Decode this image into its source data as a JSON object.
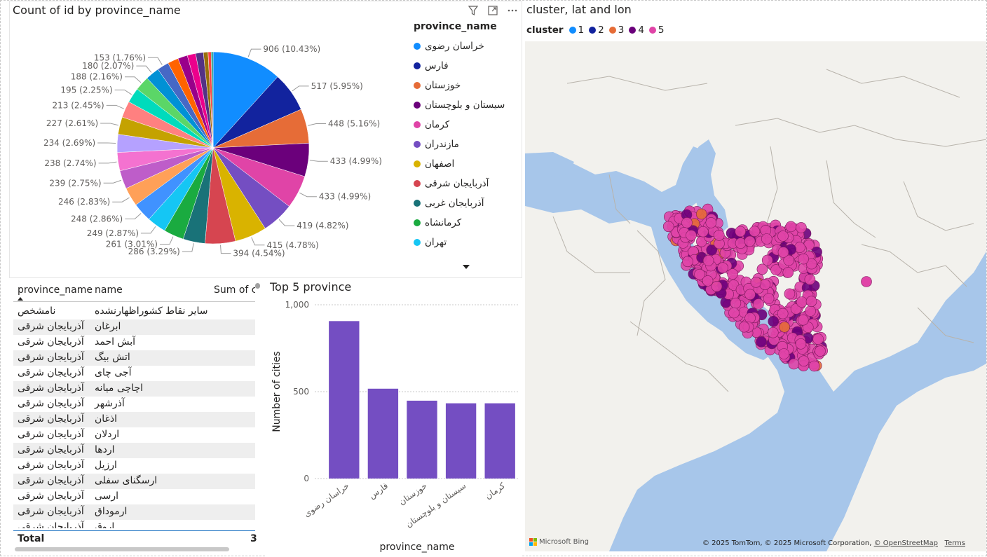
{
  "pie_visual": {
    "title": "Count of id by province_name",
    "legend_title": "province_name",
    "legend": [
      {
        "label": "خراسان رضوی",
        "color": "#118DFF"
      },
      {
        "label": "فارس",
        "color": "#12239E"
      },
      {
        "label": "خوزستان",
        "color": "#E66C37"
      },
      {
        "label": "سیستان و بلوچستان",
        "color": "#6B007B"
      },
      {
        "label": "کرمان",
        "color": "#E044A7"
      },
      {
        "label": "مازندران",
        "color": "#744EC2"
      },
      {
        "label": "اصفهان",
        "color": "#D9B300"
      },
      {
        "label": "آذربایجان شرقی",
        "color": "#D64550"
      },
      {
        "label": "آذربایجان غربی",
        "color": "#197278"
      },
      {
        "label": "کرمانشاه",
        "color": "#1AAB40"
      },
      {
        "label": "تهران",
        "color": "#15C6F4"
      }
    ]
  },
  "chart_data": [
    {
      "type": "pie",
      "title": "Count of id by province_name",
      "values": [
        906,
        517,
        448,
        433,
        433,
        419,
        415,
        394,
        286,
        261,
        249,
        248,
        246,
        239,
        238,
        234,
        227,
        213,
        195,
        188,
        180,
        153
      ],
      "labels": [
        "906 (10.43%)",
        "517 (5.95%)",
        "448 (5.16%)",
        "433 (4.99%)",
        "433 (4.99%)",
        "419 (4.82%)",
        "415 (4.78%)",
        "394 (4.54%)",
        "286 (3.29%)",
        "261 (3.01%)",
        "249 (2.87%)",
        "248 (2.86%)",
        "246 (2.83%)",
        "239 (2.75%)",
        "238 (2.74%)",
        "234 (2.69%)",
        "227 (2.61%)",
        "213 (2.45%)",
        "195 (2.25%)",
        "188 (2.16%)",
        "180 (2.07%)",
        "153 (1.76%)"
      ],
      "remaining_slices": [
        140,
        125,
        110,
        100,
        60,
        40,
        25
      ],
      "colors": [
        "#118DFF",
        "#12239E",
        "#E66C37",
        "#6B007B",
        "#E044A7",
        "#744EC2",
        "#D9B300",
        "#D64550",
        "#197278",
        "#1AAB40",
        "#15C6F4",
        "#4092FF",
        "#FFA058",
        "#BE5DC9",
        "#F472D0",
        "#B5A1FF",
        "#C4A200",
        "#FF8080",
        "#00DBBC",
        "#5BD667",
        "#0091D5",
        "#4668C5",
        "#FF6300",
        "#99008A",
        "#EC008C",
        "#533285",
        "#99700A",
        "#FF4141",
        "#1F9A85",
        "#25891C"
      ]
    },
    {
      "type": "bar",
      "title": "Top 5 province",
      "categories": [
        "خراسان رضوی",
        "فارس",
        "خوزستان",
        "سیستان و بلوچستان",
        "کرمان"
      ],
      "values": [
        906,
        517,
        448,
        433,
        433
      ],
      "xlabel": "province_name",
      "ylabel": "Number of cities",
      "yticks": [
        "0",
        "500",
        "1,000"
      ],
      "ylim": [
        0,
        1000
      ],
      "color": "#744EC2"
    }
  ],
  "table": {
    "columns": [
      "province_name",
      "name",
      "Sum of c"
    ],
    "rows": [
      [
        "نامشخص",
        "سایر نقاط کشوراظهارنشده"
      ],
      [
        "آذربایجان شرقی",
        "ابرغان"
      ],
      [
        "آذربایجان شرقی",
        "آبش احمد"
      ],
      [
        "آذربایجان شرقی",
        "اتش بیگ"
      ],
      [
        "آذربایجان شرقی",
        "آجی چای"
      ],
      [
        "آذربایجان شرقی",
        "اچاچی میانه"
      ],
      [
        "آذربایجان شرقی",
        "آذرشهر"
      ],
      [
        "آذربایجان شرقی",
        "اذغان"
      ],
      [
        "آذربایجان شرقی",
        "اردلان"
      ],
      [
        "آذربایجان شرقی",
        "اردها"
      ],
      [
        "آذربایجان شرقی",
        "ارزیل"
      ],
      [
        "آذربایجان شرقی",
        "ارسگنای سفلی"
      ],
      [
        "آذربایجان شرقی",
        "ارسی"
      ],
      [
        "آذربایجان شرقی",
        "ارموداق"
      ],
      [
        "آذربایجان شرقی",
        "اروق"
      ]
    ],
    "total_label": "Total",
    "total_value": "3"
  },
  "map": {
    "title": "cluster, lat and lon",
    "legend_label": "cluster",
    "clusters": [
      {
        "label": "1",
        "color": "#118DFF"
      },
      {
        "label": "2",
        "color": "#12239E"
      },
      {
        "label": "3",
        "color": "#E66C37"
      },
      {
        "label": "4",
        "color": "#6B007B"
      },
      {
        "label": "5",
        "color": "#E044A7"
      }
    ],
    "bing": "Microsoft Bing",
    "attribution": "© 2025 TomTom, © 2025 Microsoft Corporation,",
    "osm": "© OpenStreetMap",
    "terms": "Terms"
  }
}
